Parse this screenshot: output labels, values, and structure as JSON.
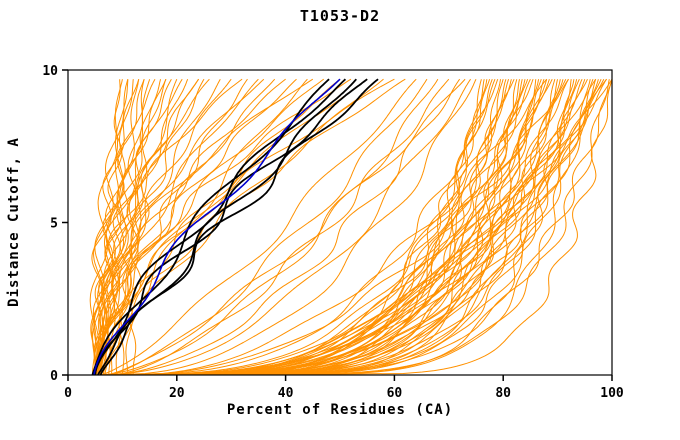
{
  "chart_data": {
    "type": "line",
    "title": "T1053-D2",
    "xlabel": "Percent of Residues (CA)",
    "ylabel": "Distance Cutoff, A",
    "xlim": [
      0,
      100
    ],
    "ylim": [
      0,
      10
    ],
    "xticks": [
      0,
      20,
      40,
      60,
      80,
      100
    ],
    "xtick_labels": [
      "0",
      "20",
      "40",
      "60",
      "80",
      "100"
    ],
    "yticks": [
      0,
      5,
      10
    ],
    "ytick_labels": [
      "0",
      "5",
      "10"
    ],
    "grid": false,
    "legend": "none",
    "box": true,
    "colors": {
      "model_orange": "#ff9100",
      "highlight_black": "#000000",
      "highlight_blue": "#0000cd",
      "axis": "#000000",
      "background": "#ffffff"
    },
    "curve_note": "Each curve encoded as [x_percent_at_cutoff0, x_percent_at_cutoff10, shape_exponent]; x(y)=x0+(xtop-x0)*(y/ymax)^p, cumulative percent of CA residues under distance cutoff",
    "ymax_drawn": 9.7,
    "families": [
      {
        "name": "orange-left",
        "color": "#ff9100",
        "width": 1,
        "amp": 1.6,
        "freq": 1.9,
        "curves": [
          [
            4.5,
            10,
            1.6
          ],
          [
            5,
            11,
            2
          ],
          [
            5.5,
            12,
            1.4
          ],
          [
            4.8,
            13,
            2.4
          ],
          [
            5.2,
            14,
            1.8
          ],
          [
            6,
            15,
            1.3
          ],
          [
            5,
            16,
            2.6
          ],
          [
            5.5,
            17,
            1.5
          ],
          [
            6,
            18,
            2
          ],
          [
            5,
            19,
            1.7
          ],
          [
            6.5,
            20,
            1.3
          ],
          [
            5.2,
            21,
            2.2
          ],
          [
            5.8,
            22,
            1.6
          ],
          [
            6,
            24,
            1.9
          ],
          [
            5,
            25,
            1.35
          ],
          [
            6.2,
            26,
            2.3
          ],
          [
            5.5,
            28,
            1.5
          ],
          [
            6,
            30,
            1.8
          ],
          [
            5,
            32,
            2.5
          ],
          [
            6.5,
            33,
            1.4
          ],
          [
            5.8,
            35,
            1.7
          ],
          [
            6,
            36,
            2.1
          ],
          [
            5.2,
            38,
            1.5
          ],
          [
            6,
            40,
            1.9
          ],
          [
            5.5,
            42,
            1.6
          ],
          [
            6.8,
            44,
            1.3
          ],
          [
            5,
            45,
            2.2
          ],
          [
            6,
            47,
            1.7
          ],
          [
            5.5,
            50,
            1.45
          ],
          [
            6,
            52,
            1.9
          ],
          [
            5.2,
            55,
            1.6
          ],
          [
            6.5,
            58,
            1.35
          ],
          [
            5.8,
            60,
            1.75
          ],
          [
            6,
            62,
            1.5
          ],
          [
            7.5,
            9.5,
            1.3
          ],
          [
            8,
            11,
            2.8
          ],
          [
            9,
            13,
            2.2
          ],
          [
            10,
            14,
            1.8
          ],
          [
            11,
            18,
            3
          ],
          [
            12,
            24,
            3.4
          ]
        ]
      },
      {
        "name": "orange-mid",
        "color": "#ff9100",
        "width": 1,
        "amp": 1.8,
        "freq": 1.6,
        "curves": [
          [
            6,
            64,
            0.8
          ],
          [
            7,
            66,
            0.7
          ],
          [
            6,
            68,
            0.6
          ],
          [
            8,
            70,
            0.65
          ],
          [
            7,
            72,
            0.55
          ],
          [
            6,
            74,
            0.5
          ],
          [
            8,
            75,
            0.45
          ],
          [
            7,
            73,
            0.75
          ],
          [
            12,
            88,
            0.5
          ],
          [
            10,
            92,
            0.45
          ]
        ]
      },
      {
        "name": "orange-right",
        "color": "#ff9100",
        "width": 1,
        "amp": 1.5,
        "freq": 2.2,
        "curves": [
          [
            5,
            76,
            0.14
          ],
          [
            6.7,
            76.5,
            0.17
          ],
          [
            8.4,
            77,
            0.2
          ],
          [
            10.1,
            77.5,
            0.23
          ],
          [
            11.8,
            78,
            0.26
          ],
          [
            13.5,
            78.5,
            0.29
          ],
          [
            5.2,
            79,
            0.32
          ],
          [
            6.9,
            79.5,
            0.15
          ],
          [
            8.6,
            80,
            0.18
          ],
          [
            10.3,
            80.5,
            0.21
          ],
          [
            12,
            81,
            0.24
          ],
          [
            13.7,
            81.5,
            0.27
          ],
          [
            5.4,
            82,
            0.3
          ],
          [
            7.1,
            82.5,
            0.13
          ],
          [
            8.8,
            83,
            0.16
          ],
          [
            10.5,
            83.5,
            0.19
          ],
          [
            12.2,
            84,
            0.22
          ],
          [
            13.9,
            84.5,
            0.25
          ],
          [
            5.6,
            85,
            0.28
          ],
          [
            7.3,
            85.5,
            0.31
          ],
          [
            9,
            86,
            0.14
          ],
          [
            10.7,
            86.5,
            0.17
          ],
          [
            12.4,
            87,
            0.2
          ],
          [
            14.1,
            87.5,
            0.23
          ],
          [
            5.8,
            88,
            0.26
          ],
          [
            7.5,
            88.5,
            0.29
          ],
          [
            9.2,
            89,
            0.32
          ],
          [
            10.9,
            89.5,
            0.15
          ],
          [
            12.6,
            90,
            0.18
          ],
          [
            14.3,
            90.5,
            0.21
          ],
          [
            6,
            91,
            0.24
          ],
          [
            7.7,
            91.5,
            0.27
          ],
          [
            9.4,
            92,
            0.3
          ],
          [
            11.1,
            92.5,
            0.13
          ],
          [
            12.8,
            93,
            0.16
          ],
          [
            14.5,
            93.5,
            0.19
          ],
          [
            6.2,
            94,
            0.22
          ],
          [
            7.9,
            94.5,
            0.25
          ],
          [
            9.6,
            95,
            0.28
          ],
          [
            11.3,
            95.5,
            0.31
          ],
          [
            13,
            96,
            0.14
          ],
          [
            6.4,
            96.5,
            0.17
          ],
          [
            8.1,
            97,
            0.2
          ],
          [
            9.8,
            97.5,
            0.23
          ],
          [
            11.5,
            98,
            0.26
          ],
          [
            13.2,
            98.5,
            0.29
          ],
          [
            6.6,
            99,
            0.32
          ],
          [
            8.3,
            99.5,
            0.15
          ],
          [
            10,
            100,
            0.18
          ],
          [
            30,
            100,
            0.15
          ],
          [
            25,
            99,
            0.5
          ],
          [
            20,
            97,
            0.45
          ],
          [
            35,
            100,
            0.6
          ]
        ]
      },
      {
        "name": "black-highlight",
        "color": "#000000",
        "width": 1.8,
        "amp": 2.4,
        "freq": 1.4,
        "curves": [
          [
            4.5,
            48,
            1.2
          ],
          [
            5,
            51,
            1.35
          ],
          [
            5.5,
            53,
            1.15
          ],
          [
            5,
            55,
            1.3
          ],
          [
            6,
            57,
            1.2
          ]
        ]
      },
      {
        "name": "blue-highlight",
        "color": "#0000cd",
        "width": 1.6,
        "amp": 2.0,
        "freq": 1.5,
        "curves": [
          [
            4.8,
            50,
            1.25
          ]
        ]
      }
    ]
  }
}
